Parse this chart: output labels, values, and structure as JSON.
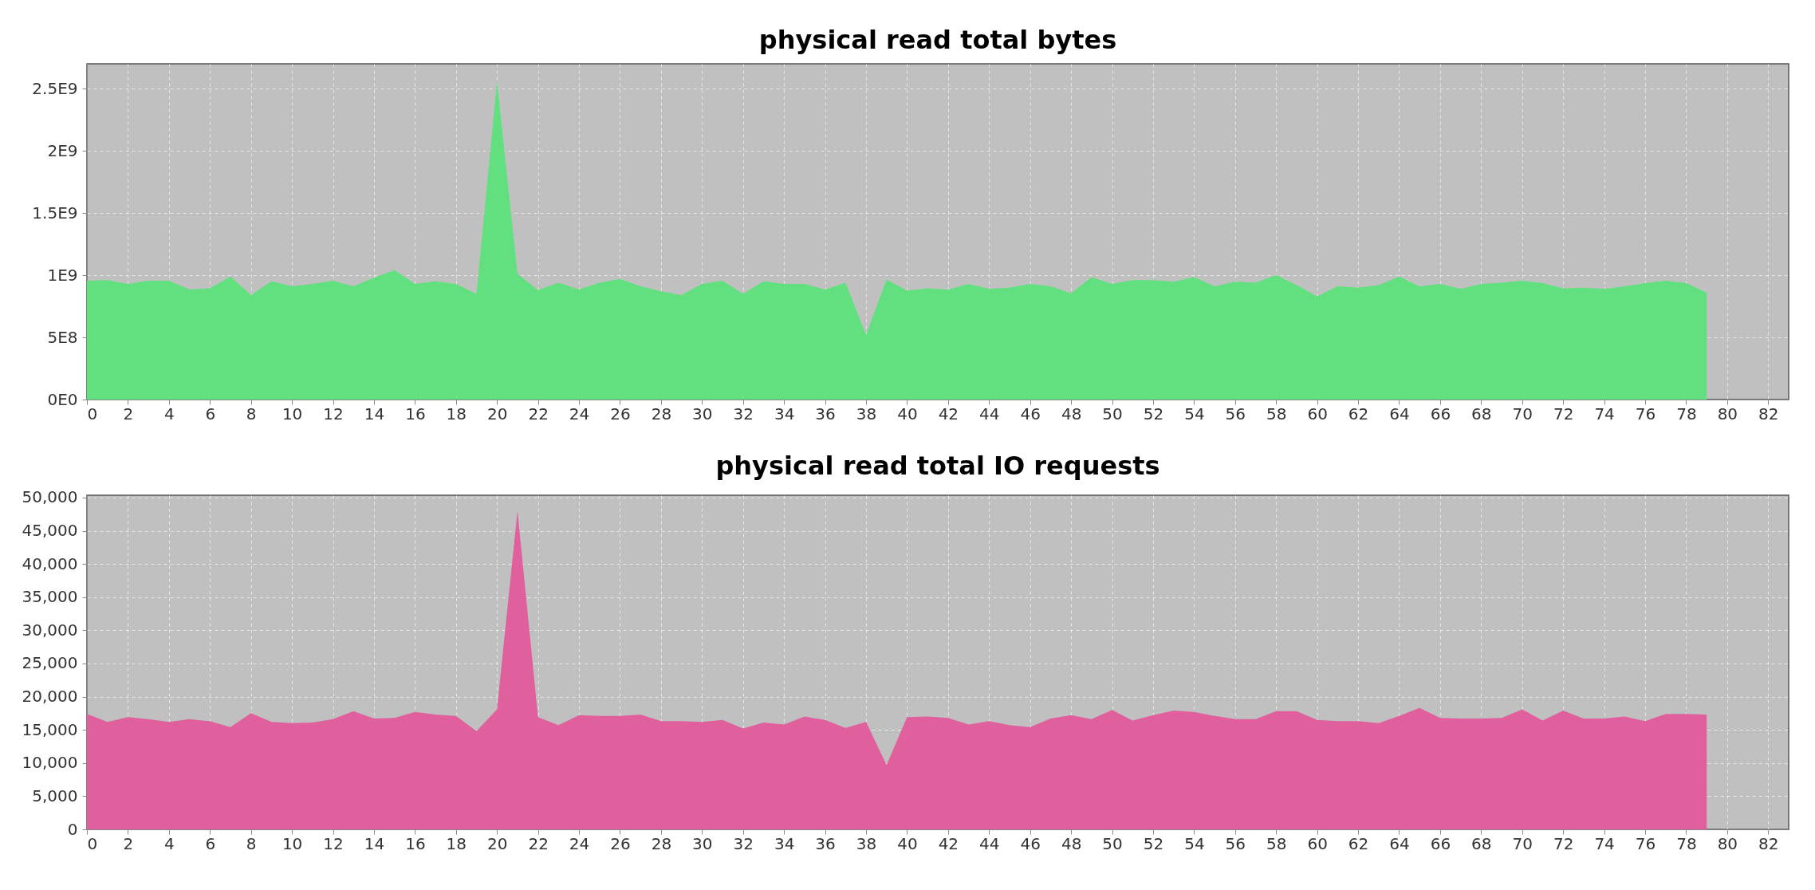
{
  "chart_data": [
    {
      "type": "area",
      "title": "physical read total bytes",
      "x": [
        0,
        1,
        2,
        3,
        4,
        5,
        6,
        7,
        8,
        9,
        10,
        11,
        12,
        13,
        14,
        15,
        16,
        17,
        18,
        19,
        20,
        21,
        22,
        23,
        24,
        25,
        26,
        27,
        28,
        29,
        30,
        31,
        32,
        33,
        34,
        35,
        36,
        37,
        38,
        39,
        40,
        41,
        42,
        43,
        44,
        45,
        46,
        47,
        48,
        49,
        50,
        51,
        52,
        53,
        54,
        55,
        56,
        57,
        58,
        59,
        60,
        61,
        62,
        63,
        64,
        65,
        66,
        67,
        68,
        69,
        70,
        71,
        72,
        73,
        74,
        75,
        76,
        77,
        78,
        79
      ],
      "values": [
        956000000,
        960000000,
        930000000,
        956000000,
        956000000,
        885000000,
        895000000,
        990000000,
        840000000,
        950000000,
        910000000,
        930000000,
        956000000,
        910000000,
        980000000,
        1040000000,
        930000000,
        950000000,
        930000000,
        850000000,
        2560000000,
        1010000000,
        880000000,
        940000000,
        885000000,
        940000000,
        970000000,
        910000000,
        870000000,
        840000000,
        930000000,
        956000000,
        850000000,
        950000000,
        930000000,
        930000000,
        885000000,
        940000000,
        520000000,
        966000000,
        875000000,
        894000000,
        884000000,
        930000000,
        890000000,
        900000000,
        930000000,
        910000000,
        855000000,
        985000000,
        930000000,
        960000000,
        960000000,
        947000000,
        985000000,
        910000000,
        947000000,
        940000000,
        1000000000,
        920000000,
        830000000,
        910000000,
        900000000,
        920000000,
        990000000,
        910000000,
        930000000,
        890000000,
        930000000,
        940000000,
        956000000,
        937000000,
        894000000,
        900000000,
        890000000,
        910000000,
        937000000,
        956000000,
        937000000,
        860000000
      ],
      "color": "#62e07f",
      "xlim": [
        0,
        83
      ],
      "xticks": [
        0,
        2,
        4,
        6,
        8,
        10,
        12,
        14,
        16,
        18,
        20,
        22,
        24,
        26,
        28,
        30,
        32,
        34,
        36,
        38,
        40,
        42,
        44,
        46,
        48,
        50,
        52,
        54,
        56,
        58,
        60,
        62,
        64,
        66,
        68,
        70,
        72,
        74,
        76,
        78,
        80,
        82
      ],
      "ylim": [
        0,
        2700000000
      ],
      "yticks": [
        {
          "value": 0,
          "label": "0E0"
        },
        {
          "value": 500000000,
          "label": "5E8"
        },
        {
          "value": 1000000000,
          "label": "1E9"
        },
        {
          "value": 1500000000,
          "label": "1.5E9"
        },
        {
          "value": 2000000000,
          "label": "2E9"
        },
        {
          "value": 2500000000,
          "label": "2.5E9"
        }
      ],
      "grid": true
    },
    {
      "type": "area",
      "title": "physical read total IO requests",
      "x": [
        0,
        1,
        2,
        3,
        4,
        5,
        6,
        7,
        8,
        9,
        10,
        11,
        12,
        13,
        14,
        15,
        16,
        17,
        18,
        19,
        20,
        21,
        22,
        23,
        24,
        25,
        26,
        27,
        28,
        29,
        30,
        31,
        32,
        33,
        34,
        35,
        36,
        37,
        38,
        39,
        40,
        41,
        42,
        43,
        44,
        45,
        46,
        47,
        48,
        49,
        50,
        51,
        52,
        53,
        54,
        55,
        56,
        57,
        58,
        59,
        60,
        61,
        62,
        63,
        64,
        65,
        66,
        67,
        68,
        69,
        70,
        71,
        72,
        73,
        74,
        75,
        76,
        77,
        78,
        79
      ],
      "values": [
        17400,
        16200,
        16900,
        16600,
        16200,
        16600,
        16300,
        15400,
        17500,
        16200,
        16000,
        16100,
        16600,
        17800,
        16700,
        16800,
        17700,
        17300,
        17100,
        14800,
        18100,
        48000,
        16900,
        15700,
        17200,
        17100,
        17100,
        17300,
        16300,
        16300,
        16200,
        16500,
        15200,
        16100,
        15800,
        17000,
        16500,
        15300,
        16200,
        9700,
        16900,
        17000,
        16800,
        15800,
        16300,
        15700,
        15400,
        16700,
        17200,
        16600,
        18000,
        16400,
        17200,
        17900,
        17700,
        17100,
        16600,
        16600,
        17800,
        17800,
        16500,
        16300,
        16300,
        16000,
        17100,
        18300,
        16800,
        16700,
        16700,
        16800,
        18100,
        16400,
        17900,
        16700,
        16700,
        17000,
        16300,
        17400,
        17400,
        17300
      ],
      "color": "#e0609e",
      "xlim": [
        0,
        83
      ],
      "xticks": [
        0,
        2,
        4,
        6,
        8,
        10,
        12,
        14,
        16,
        18,
        20,
        22,
        24,
        26,
        28,
        30,
        32,
        34,
        36,
        38,
        40,
        42,
        44,
        46,
        48,
        50,
        52,
        54,
        56,
        58,
        60,
        62,
        64,
        66,
        68,
        70,
        72,
        74,
        76,
        78,
        80,
        82
      ],
      "ylim": [
        0,
        50350
      ],
      "yticks": [
        0,
        {
          "value": 5000,
          "label": "5,000"
        },
        {
          "value": 10000,
          "label": "10,000"
        },
        {
          "value": 15000,
          "label": "15,000"
        },
        {
          "value": 20000,
          "label": "20,000"
        },
        {
          "value": 25000,
          "label": "25,000"
        },
        {
          "value": 30000,
          "label": "30,000"
        },
        {
          "value": 35000,
          "label": "35,000"
        },
        {
          "value": 40000,
          "label": "40,000"
        },
        {
          "value": 45000,
          "label": "45,000"
        },
        {
          "value": 50000,
          "label": "50,000"
        }
      ],
      "grid": true
    }
  ]
}
